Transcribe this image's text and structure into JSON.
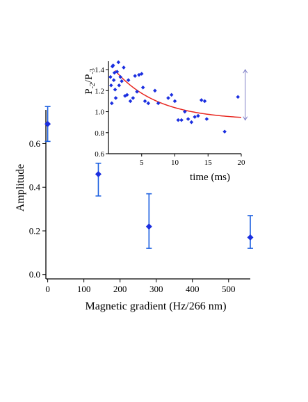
{
  "chart_data": [
    {
      "type": "scatter",
      "panel": "main",
      "xlabel": "Magnetic gradient (Hz/266 nm)",
      "ylabel": "Amplitude",
      "xlim": [
        -5,
        560
      ],
      "ylim": [
        -0.02,
        0.78
      ],
      "xticks": [
        0,
        100,
        200,
        300,
        400,
        500
      ],
      "yticks": [
        0.0,
        0.2,
        0.4,
        0.6
      ],
      "ytick_labels": [
        "0.0",
        "0.2",
        "0.4",
        "0.6"
      ],
      "grid": false,
      "marker": "diamond",
      "series": [
        {
          "points": [
            {
              "x": 0,
              "y": 0.69,
              "err_low": 0.61,
              "err_high": 0.77
            },
            {
              "x": 140,
              "y": 0.46,
              "err_low": 0.36,
              "err_high": 0.51
            },
            {
              "x": 280,
              "y": 0.22,
              "err_low": 0.12,
              "err_high": 0.37
            },
            {
              "x": 560,
              "y": 0.17,
              "err_low": 0.12,
              "err_high": 0.27
            }
          ]
        }
      ]
    },
    {
      "type": "scatter",
      "panel": "inset",
      "xlabel": "time (ms)",
      "ylabel_main": "P",
      "ylabel_sub1": "-2",
      "ylabel_mid": "/P",
      "ylabel_sub2": "-3",
      "xlim": [
        0,
        20
      ],
      "ylim": [
        0.6,
        1.48
      ],
      "xticks": [
        5,
        10,
        15,
        20
      ],
      "yticks": [
        0.6,
        0.8,
        1.0,
        1.2,
        1.4
      ],
      "ytick_labels": [
        "0.6",
        "0.8",
        "1.0",
        "1.2",
        "1.4"
      ],
      "grid": false,
      "marker": "diamond",
      "series": [
        {
          "points": [
            [
              0.3,
              1.33
            ],
            [
              0.4,
              1.25
            ],
            [
              0.5,
              1.08
            ],
            [
              0.6,
              1.43
            ],
            [
              0.7,
              1.44
            ],
            [
              0.8,
              1.3
            ],
            [
              0.9,
              1.37
            ],
            [
              1.0,
              1.21
            ],
            [
              1.1,
              1.13
            ],
            [
              1.3,
              1.38
            ],
            [
              1.5,
              1.47
            ],
            [
              1.6,
              1.25
            ],
            [
              1.8,
              1.33
            ],
            [
              2.0,
              1.29
            ],
            [
              2.3,
              1.42
            ],
            [
              2.5,
              1.15
            ],
            [
              2.8,
              1.16
            ],
            [
              3.0,
              1.3
            ],
            [
              3.3,
              1.1
            ],
            [
              3.7,
              1.13
            ],
            [
              4.0,
              1.34
            ],
            [
              4.3,
              1.19
            ],
            [
              4.6,
              1.35
            ],
            [
              5.0,
              1.36
            ],
            [
              5.2,
              1.23
            ],
            [
              5.5,
              1.1
            ],
            [
              6.0,
              1.08
            ],
            [
              7.0,
              1.2
            ],
            [
              7.5,
              1.08
            ],
            [
              9.0,
              1.13
            ],
            [
              9.5,
              1.16
            ],
            [
              10.0,
              1.1
            ],
            [
              10.5,
              0.92
            ],
            [
              11.0,
              0.92
            ],
            [
              11.5,
              1.0
            ],
            [
              12.0,
              0.93
            ],
            [
              12.5,
              0.9
            ],
            [
              13.0,
              0.95
            ],
            [
              13.5,
              0.96
            ],
            [
              14.0,
              1.11
            ],
            [
              14.5,
              1.1
            ],
            [
              14.8,
              0.93
            ],
            [
              17.5,
              0.81
            ],
            [
              19.5,
              1.14
            ]
          ]
        }
      ],
      "fit": {
        "kind": "exponential decay",
        "color": "#e8261f",
        "x_start": 1.0,
        "x_end": 20,
        "y_inf": 0.92,
        "amplitude": 0.55,
        "tau_ms": 6.5
      },
      "range_marker": {
        "x": 20.6,
        "y_low": 0.92,
        "y_high": 1.4,
        "color": "#8080c8"
      }
    }
  ],
  "colors": {
    "points": "#1b2fe0",
    "errorbars": "#1b5fe0",
    "axis": "#000000"
  }
}
